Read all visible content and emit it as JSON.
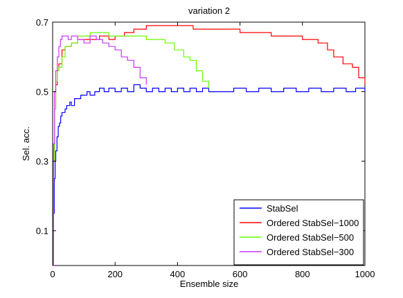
{
  "chart_data": {
    "type": "line",
    "title": "variation 2",
    "xlabel": "Ensemble size",
    "ylabel": "Sel. acc.",
    "xlim": [
      0,
      1000
    ],
    "ylim": [
      0,
      0.7
    ],
    "xticks": [
      0,
      200,
      400,
      600,
      800,
      1000
    ],
    "xtick_labels": [
      "0",
      "200",
      "400",
      "600",
      "800",
      "1000"
    ],
    "yticks": [
      0.1,
      0.3,
      0.5,
      0.7
    ],
    "ytick_labels": [
      "0.1",
      "0.3",
      "0.5",
      "0.7"
    ],
    "grid": false,
    "legend_position": "bottom-right",
    "series": [
      {
        "name": "StabSel",
        "color": "#0000ff",
        "x": [
          1,
          3,
          5,
          8,
          10,
          14,
          18,
          22,
          26,
          30,
          35,
          40,
          45,
          50,
          55,
          60,
          70,
          80,
          90,
          100,
          110,
          120,
          135,
          150,
          165,
          180,
          200,
          220,
          240,
          260,
          280,
          300,
          320,
          340,
          360,
          380,
          400,
          420,
          440,
          460,
          480,
          500,
          540,
          580,
          620,
          660,
          700,
          740,
          780,
          820,
          860,
          900,
          940,
          970,
          1000
        ],
        "y": [
          0.0,
          0.15,
          0.25,
          0.3,
          0.33,
          0.37,
          0.4,
          0.41,
          0.43,
          0.44,
          0.44,
          0.45,
          0.46,
          0.46,
          0.47,
          0.46,
          0.48,
          0.48,
          0.49,
          0.49,
          0.5,
          0.49,
          0.5,
          0.51,
          0.5,
          0.51,
          0.5,
          0.51,
          0.5,
          0.52,
          0.51,
          0.5,
          0.51,
          0.5,
          0.51,
          0.5,
          0.51,
          0.5,
          0.51,
          0.5,
          0.51,
          0.5,
          0.5,
          0.51,
          0.5,
          0.51,
          0.5,
          0.51,
          0.5,
          0.51,
          0.5,
          0.51,
          0.5,
          0.51,
          0.5
        ]
      },
      {
        "name": "Ordered StabSel−1000",
        "color": "#ff0000",
        "x": [
          1,
          3,
          6,
          10,
          15,
          20,
          30,
          40,
          60,
          80,
          100,
          120,
          150,
          180,
          200,
          230,
          260,
          300,
          350,
          400,
          450,
          500,
          550,
          600,
          650,
          700,
          750,
          800,
          850,
          880,
          900,
          930,
          960,
          980,
          1000
        ],
        "y": [
          0.0,
          0.3,
          0.45,
          0.52,
          0.56,
          0.58,
          0.62,
          0.63,
          0.64,
          0.65,
          0.65,
          0.65,
          0.66,
          0.65,
          0.66,
          0.67,
          0.68,
          0.69,
          0.69,
          0.69,
          0.68,
          0.68,
          0.68,
          0.67,
          0.67,
          0.66,
          0.66,
          0.65,
          0.64,
          0.62,
          0.6,
          0.58,
          0.57,
          0.54,
          0.52
        ]
      },
      {
        "name": "Ordered StabSel−500",
        "color": "#66ff00",
        "x": [
          1,
          3,
          6,
          10,
          15,
          20,
          30,
          40,
          60,
          80,
          100,
          120,
          140,
          160,
          180,
          200,
          230,
          260,
          300,
          330,
          360,
          390,
          420,
          440,
          460,
          480,
          500
        ],
        "y": [
          0.0,
          0.3,
          0.45,
          0.53,
          0.56,
          0.57,
          0.6,
          0.63,
          0.64,
          0.66,
          0.66,
          0.67,
          0.67,
          0.67,
          0.66,
          0.66,
          0.66,
          0.66,
          0.65,
          0.65,
          0.64,
          0.62,
          0.6,
          0.59,
          0.56,
          0.53,
          0.51
        ]
      },
      {
        "name": "Ordered StabSel−300",
        "color": "#cc33ff",
        "x": [
          1,
          3,
          6,
          10,
          15,
          20,
          25,
          30,
          40,
          50,
          60,
          80,
          100,
          120,
          140,
          160,
          180,
          200,
          220,
          240,
          260,
          280,
          300
        ],
        "y": [
          0.0,
          0.35,
          0.5,
          0.56,
          0.6,
          0.63,
          0.65,
          0.66,
          0.66,
          0.65,
          0.66,
          0.65,
          0.64,
          0.66,
          0.65,
          0.64,
          0.63,
          0.62,
          0.6,
          0.59,
          0.57,
          0.54,
          0.52
        ]
      }
    ]
  }
}
